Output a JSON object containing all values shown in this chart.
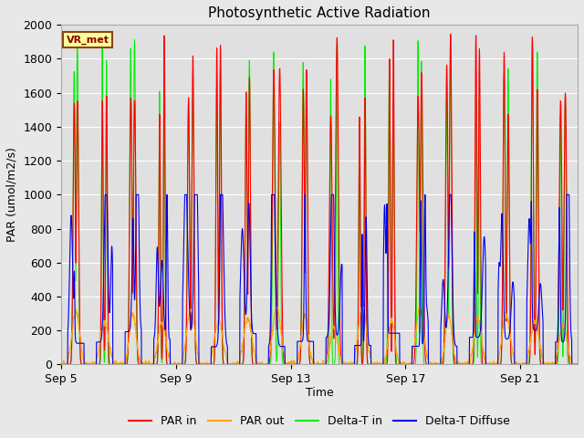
{
  "title": "Photosynthetic Active Radiation",
  "ylabel": "PAR (umol/m2/s)",
  "xlabel": "Time",
  "annotation": "VR_met",
  "ylim": [
    0,
    2000
  ],
  "yticks": [
    0,
    200,
    400,
    600,
    800,
    1000,
    1200,
    1400,
    1600,
    1800,
    2000
  ],
  "fig_bg": "#e8e8e8",
  "plot_bg": "#e0e0e0",
  "grid_color": "#ffffff",
  "colors": {
    "PAR in": "#ff0000",
    "PAR out": "#ffa500",
    "Delta-T in": "#00ee00",
    "Delta-T Diffuse": "#0000ee"
  },
  "xtick_labels": [
    "Sep 5",
    "Sep 9",
    "Sep 13",
    "Sep 17",
    "Sep 21"
  ],
  "xtick_positions": [
    0,
    4,
    8,
    12,
    16
  ],
  "xlim": [
    0,
    18
  ],
  "num_days": 18,
  "pts_per_day": 144,
  "seed": 12345
}
